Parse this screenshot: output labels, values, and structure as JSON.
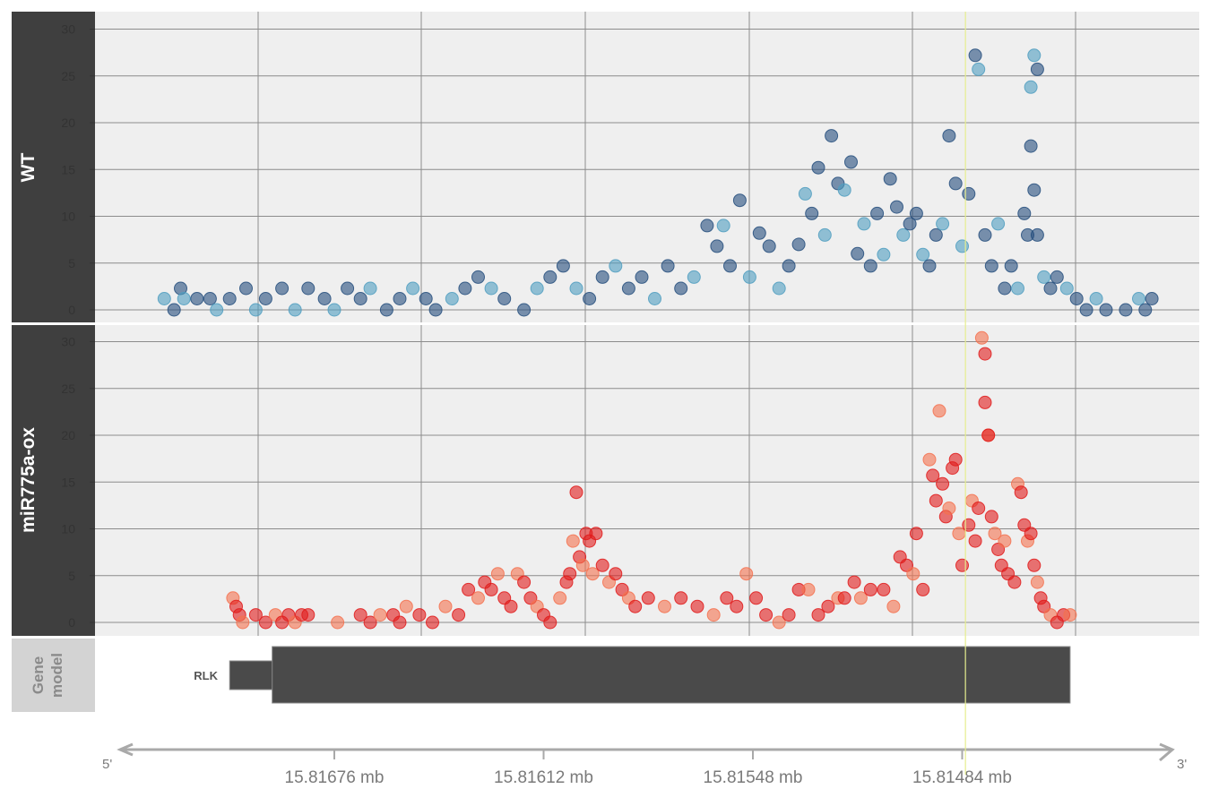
{
  "colors": {
    "panel_bg": "#efefef",
    "grid": "#8c8c8c",
    "strip_bg": "#3f3f3f",
    "strip_text": "#ffffff",
    "gene_strip_bg": "#d3d3d3",
    "gene_strip_text": "#8a8a8a",
    "gene_fill": "#4a4a4a",
    "axis_text": "#7a7a7a",
    "highlight_line": "#e6ee8f",
    "wt_dark": "#244d7d",
    "wt_light": "#4f9dbf",
    "ox_dark": "#e11a1a",
    "ox_light": "#f4714f"
  },
  "panels": [
    {
      "label": "WT"
    },
    {
      "label": "miR775a-ox"
    }
  ],
  "gene_panel": {
    "label_line1": "Gene",
    "label_line2": "model",
    "gene_name": "RLK"
  },
  "axis": {
    "five_prime": "5'",
    "three_prime": "3'",
    "tick_labels": [
      "15.81676 mb",
      "15.81612 mb",
      "15.81548 mb",
      "15.81484 mb"
    ]
  },
  "chart_data": {
    "type": "scatter",
    "x_unit": "mb (genomic position, reversed)",
    "highlight_position_mb": 15.81483,
    "gene_model": {
      "name": "RLK",
      "start_mb": 15.81708,
      "utr_end_mb": 15.81695,
      "end_mb": 15.81451
    },
    "y_ticks": [
      0,
      5,
      10,
      15,
      20,
      25,
      30
    ],
    "ylim": [
      -1.5,
      32
    ],
    "x_ticks": [
      15.81676,
      15.81612,
      15.81548,
      15.81484
    ],
    "series": [
      {
        "name": "WT",
        "points": [
          [
            15.81728,
            1.2
          ],
          [
            15.81725,
            0
          ],
          [
            15.81723,
            2.3
          ],
          [
            15.81722,
            1.2
          ],
          [
            15.81718,
            1.2
          ],
          [
            15.81714,
            1.2
          ],
          [
            15.81712,
            0
          ],
          [
            15.81708,
            1.2
          ],
          [
            15.81703,
            2.3
          ],
          [
            15.817,
            0
          ],
          [
            15.81697,
            1.2
          ],
          [
            15.81692,
            2.3
          ],
          [
            15.81688,
            0
          ],
          [
            15.81684,
            2.3
          ],
          [
            15.81679,
            1.2
          ],
          [
            15.81676,
            0
          ],
          [
            15.81672,
            2.3
          ],
          [
            15.81668,
            1.2
          ],
          [
            15.81665,
            2.3
          ],
          [
            15.8166,
            0
          ],
          [
            15.81656,
            1.2
          ],
          [
            15.81652,
            2.3
          ],
          [
            15.81648,
            1.2
          ],
          [
            15.81645,
            0
          ],
          [
            15.8164,
            1.2
          ],
          [
            15.81636,
            2.3
          ],
          [
            15.81632,
            3.5
          ],
          [
            15.81628,
            2.3
          ],
          [
            15.81624,
            1.2
          ],
          [
            15.81618,
            0
          ],
          [
            15.81614,
            2.3
          ],
          [
            15.8161,
            3.5
          ],
          [
            15.81606,
            4.7
          ],
          [
            15.81602,
            2.3
          ],
          [
            15.81598,
            1.2
          ],
          [
            15.81594,
            3.5
          ],
          [
            15.8159,
            4.7
          ],
          [
            15.81586,
            2.3
          ],
          [
            15.81582,
            3.5
          ],
          [
            15.81578,
            1.2
          ],
          [
            15.81574,
            4.7
          ],
          [
            15.8157,
            2.3
          ],
          [
            15.81566,
            3.5
          ],
          [
            15.81562,
            9.0
          ],
          [
            15.81559,
            6.8
          ],
          [
            15.81557,
            9.0
          ],
          [
            15.81555,
            4.7
          ],
          [
            15.81552,
            11.7
          ],
          [
            15.81549,
            3.5
          ],
          [
            15.81546,
            8.2
          ],
          [
            15.81543,
            6.8
          ],
          [
            15.8154,
            2.3
          ],
          [
            15.81537,
            4.7
          ],
          [
            15.81534,
            7.0
          ],
          [
            15.81532,
            12.4
          ],
          [
            15.8153,
            10.3
          ],
          [
            15.81528,
            15.2
          ],
          [
            15.81526,
            8.0
          ],
          [
            15.81524,
            18.6
          ],
          [
            15.81522,
            13.5
          ],
          [
            15.8152,
            12.8
          ],
          [
            15.81518,
            15.8
          ],
          [
            15.81516,
            6.0
          ],
          [
            15.81514,
            9.2
          ],
          [
            15.81512,
            4.7
          ],
          [
            15.8151,
            10.3
          ],
          [
            15.81508,
            5.9
          ],
          [
            15.81506,
            14.0
          ],
          [
            15.81504,
            11.0
          ],
          [
            15.81502,
            8.0
          ],
          [
            15.815,
            9.2
          ],
          [
            15.81498,
            10.3
          ],
          [
            15.81496,
            5.9
          ],
          [
            15.81494,
            4.7
          ],
          [
            15.81492,
            8.0
          ],
          [
            15.8149,
            9.2
          ],
          [
            15.81488,
            18.6
          ],
          [
            15.81486,
            13.5
          ],
          [
            15.81484,
            6.8
          ],
          [
            15.81482,
            12.4
          ],
          [
            15.8148,
            27.2
          ],
          [
            15.81479,
            25.7
          ],
          [
            15.81477,
            8.0
          ],
          [
            15.81475,
            4.7
          ],
          [
            15.81473,
            9.2
          ],
          [
            15.81471,
            2.3
          ],
          [
            15.81469,
            4.7
          ],
          [
            15.81467,
            2.3
          ],
          [
            15.81465,
            10.3
          ],
          [
            15.81464,
            8.0
          ],
          [
            15.81463,
            23.8
          ],
          [
            15.81463,
            17.5
          ],
          [
            15.81462,
            12.8
          ],
          [
            15.81462,
            27.2
          ],
          [
            15.81461,
            25.7
          ],
          [
            15.81461,
            8.0
          ],
          [
            15.81459,
            3.5
          ],
          [
            15.81457,
            2.3
          ],
          [
            15.81455,
            3.5
          ],
          [
            15.81452,
            2.3
          ],
          [
            15.81449,
            1.2
          ],
          [
            15.81446,
            0
          ],
          [
            15.81443,
            1.2
          ],
          [
            15.8144,
            0
          ],
          [
            15.81434,
            0
          ],
          [
            15.8143,
            1.2
          ],
          [
            15.81428,
            0
          ],
          [
            15.81426,
            1.2
          ]
        ]
      },
      {
        "name": "miR775a-ox",
        "points": [
          [
            15.81707,
            2.6
          ],
          [
            15.81706,
            1.7
          ],
          [
            15.81705,
            0.8
          ],
          [
            15.81704,
            0
          ],
          [
            15.817,
            0.8
          ],
          [
            15.81697,
            0
          ],
          [
            15.81694,
            0.8
          ],
          [
            15.81692,
            0
          ],
          [
            15.8169,
            0.8
          ],
          [
            15.81688,
            0
          ],
          [
            15.81686,
            0.8
          ],
          [
            15.81684,
            0.8
          ],
          [
            15.81675,
            0
          ],
          [
            15.81668,
            0.8
          ],
          [
            15.81665,
            0
          ],
          [
            15.81662,
            0.8
          ],
          [
            15.81658,
            0.8
          ],
          [
            15.81656,
            0
          ],
          [
            15.81654,
            1.7
          ],
          [
            15.8165,
            0.8
          ],
          [
            15.81646,
            0
          ],
          [
            15.81642,
            1.7
          ],
          [
            15.81638,
            0.8
          ],
          [
            15.81635,
            3.5
          ],
          [
            15.81632,
            2.6
          ],
          [
            15.8163,
            4.3
          ],
          [
            15.81628,
            3.5
          ],
          [
            15.81626,
            5.2
          ],
          [
            15.81624,
            2.6
          ],
          [
            15.81622,
            1.7
          ],
          [
            15.8162,
            5.2
          ],
          [
            15.81618,
            4.3
          ],
          [
            15.81616,
            2.6
          ],
          [
            15.81614,
            1.7
          ],
          [
            15.81612,
            0.8
          ],
          [
            15.8161,
            0
          ],
          [
            15.81607,
            2.6
          ],
          [
            15.81605,
            4.3
          ],
          [
            15.81604,
            5.2
          ],
          [
            15.81603,
            8.7
          ],
          [
            15.81602,
            13.9
          ],
          [
            15.81601,
            7.0
          ],
          [
            15.816,
            6.1
          ],
          [
            15.81599,
            9.5
          ],
          [
            15.81598,
            8.7
          ],
          [
            15.81597,
            5.2
          ],
          [
            15.81596,
            9.5
          ],
          [
            15.81594,
            6.1
          ],
          [
            15.81592,
            4.3
          ],
          [
            15.8159,
            5.2
          ],
          [
            15.81588,
            3.5
          ],
          [
            15.81586,
            2.6
          ],
          [
            15.81584,
            1.7
          ],
          [
            15.8158,
            2.6
          ],
          [
            15.81575,
            1.7
          ],
          [
            15.8157,
            2.6
          ],
          [
            15.81565,
            1.7
          ],
          [
            15.8156,
            0.8
          ],
          [
            15.81556,
            2.6
          ],
          [
            15.81553,
            1.7
          ],
          [
            15.8155,
            5.2
          ],
          [
            15.81547,
            2.6
          ],
          [
            15.81544,
            0.8
          ],
          [
            15.8154,
            0
          ],
          [
            15.81537,
            0.8
          ],
          [
            15.81534,
            3.5
          ],
          [
            15.81531,
            3.5
          ],
          [
            15.81528,
            0.8
          ],
          [
            15.81525,
            1.7
          ],
          [
            15.81522,
            2.6
          ],
          [
            15.8152,
            2.6
          ],
          [
            15.81517,
            4.3
          ],
          [
            15.81515,
            2.6
          ],
          [
            15.81512,
            3.5
          ],
          [
            15.81508,
            3.5
          ],
          [
            15.81505,
            1.7
          ],
          [
            15.81503,
            7.0
          ],
          [
            15.81501,
            6.1
          ],
          [
            15.81499,
            5.2
          ],
          [
            15.81498,
            9.5
          ],
          [
            15.81496,
            3.5
          ],
          [
            15.81494,
            17.4
          ],
          [
            15.81493,
            15.7
          ],
          [
            15.81492,
            13.0
          ],
          [
            15.81491,
            22.6
          ],
          [
            15.8149,
            14.8
          ],
          [
            15.81489,
            11.3
          ],
          [
            15.81488,
            12.2
          ],
          [
            15.81487,
            16.5
          ],
          [
            15.81486,
            17.4
          ],
          [
            15.81485,
            9.5
          ],
          [
            15.81484,
            6.1
          ],
          [
            15.81482,
            10.4
          ],
          [
            15.81481,
            13.0
          ],
          [
            15.8148,
            8.7
          ],
          [
            15.81479,
            12.2
          ],
          [
            15.81478,
            30.4
          ],
          [
            15.81477,
            28.7
          ],
          [
            15.81477,
            23.5
          ],
          [
            15.81476,
            20.0
          ],
          [
            15.81476,
            20.0
          ],
          [
            15.81475,
            11.3
          ],
          [
            15.81474,
            9.5
          ],
          [
            15.81473,
            7.8
          ],
          [
            15.81472,
            6.1
          ],
          [
            15.81471,
            8.7
          ],
          [
            15.8147,
            5.2
          ],
          [
            15.81468,
            4.3
          ],
          [
            15.81467,
            14.8
          ],
          [
            15.81466,
            13.9
          ],
          [
            15.81465,
            10.4
          ],
          [
            15.81464,
            8.7
          ],
          [
            15.81463,
            9.5
          ],
          [
            15.81462,
            6.1
          ],
          [
            15.81461,
            4.3
          ],
          [
            15.8146,
            2.6
          ],
          [
            15.81459,
            1.7
          ],
          [
            15.81457,
            0.8
          ],
          [
            15.81455,
            0
          ],
          [
            15.81453,
            0.8
          ],
          [
            15.81451,
            0.8
          ]
        ]
      }
    ]
  }
}
